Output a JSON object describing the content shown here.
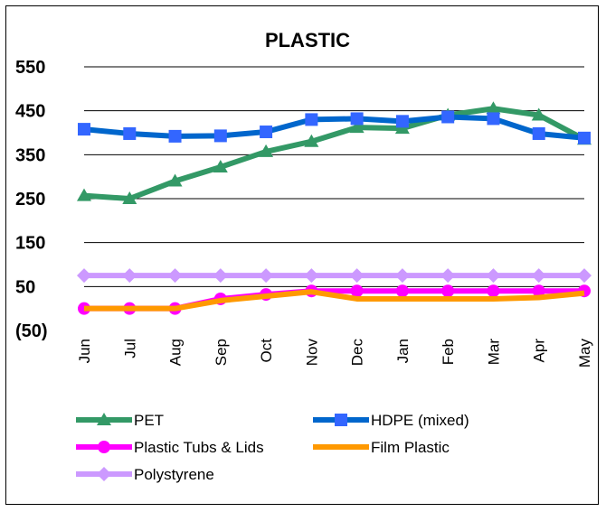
{
  "chart_data": {
    "type": "line",
    "title": "PLASTIC",
    "xlabel": "",
    "ylabel": "",
    "categories": [
      "Jun",
      "Jul",
      "Aug",
      "Sep",
      "Oct",
      "Nov",
      "Dec",
      "Jan",
      "Feb",
      "Mar",
      "Apr",
      "May"
    ],
    "y_ticks": [
      "550",
      "450",
      "350",
      "250",
      "150",
      "50",
      "(50)"
    ],
    "ylim": [
      -50,
      550
    ],
    "grid": true,
    "legend_position": "bottom",
    "series": [
      {
        "name": "PET",
        "color": "#339966",
        "marker": "triangle",
        "values": [
          257,
          250,
          290,
          322,
          357,
          380,
          412,
          410,
          440,
          455,
          440,
          385
        ]
      },
      {
        "name": "HDPE (mixed)",
        "color": "#0066CC",
        "marker": "square",
        "values": [
          408,
          398,
          392,
          393,
          402,
          430,
          432,
          426,
          436,
          432,
          398,
          388
        ]
      },
      {
        "name": "Plastic Tubs & Lids",
        "color": "#FF00FF",
        "marker": "circle",
        "values": [
          0,
          0,
          0,
          22,
          32,
          40,
          40,
          40,
          40,
          40,
          40,
          40
        ]
      },
      {
        "name": "Film Plastic",
        "color": "#FF9900",
        "marker": "none",
        "values": [
          0,
          0,
          0,
          18,
          28,
          38,
          22,
          22,
          22,
          22,
          25,
          35
        ]
      },
      {
        "name": "Polystyrene",
        "color": "#CC99FF",
        "marker": "diamond",
        "values": [
          75,
          75,
          75,
          75,
          75,
          75,
          75,
          75,
          75,
          75,
          75,
          75
        ]
      }
    ]
  }
}
